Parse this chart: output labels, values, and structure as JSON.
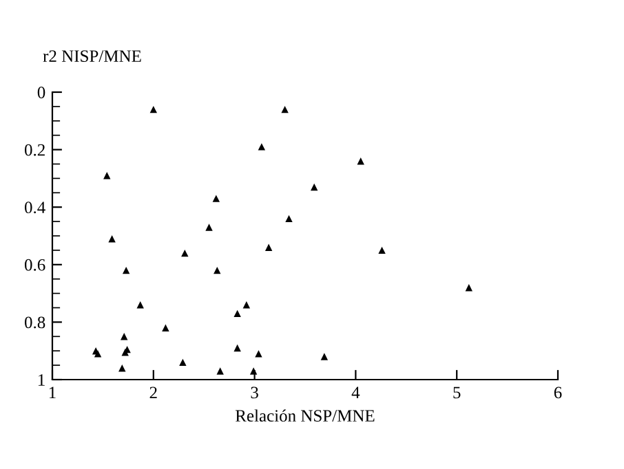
{
  "chart_data": {
    "type": "scatter",
    "xlabel": "Relación NSP/MNE",
    "ylabel": "r2 NISP/MNE",
    "x": [
      2.0,
      1.54,
      2.62,
      2.55,
      1.59,
      2.31,
      1.73,
      2.63,
      1.87,
      2.12,
      1.71,
      1.43,
      1.45,
      1.72,
      1.74,
      1.69,
      2.29,
      2.66,
      3.3,
      3.07,
      4.05,
      3.59,
      3.34,
      3.14,
      4.26,
      2.92,
      2.83,
      2.83,
      3.04,
      3.69,
      2.99,
      5.12
    ],
    "series": [
      {
        "color": "#000000",
        "values": [
          0.06,
          0.29,
          0.37,
          0.47,
          0.51,
          0.56,
          0.62,
          0.62,
          0.74,
          0.82,
          0.85,
          0.9,
          0.91,
          0.905,
          0.895,
          0.96,
          0.94,
          0.97,
          0.06,
          0.19,
          0.24,
          0.33,
          0.44,
          0.54,
          0.55,
          0.74,
          0.77,
          0.89,
          0.91,
          0.92,
          0.97,
          0.68
        ]
      }
    ],
    "marker": "triangle",
    "xlim": [
      1,
      6
    ],
    "xticks": [
      1,
      2,
      3,
      4,
      5,
      6
    ],
    "ylim": [
      1,
      0
    ],
    "yticks": [
      0,
      {
        "value": 0.05,
        "label": null
      },
      {
        "value": 0.1,
        "label": null
      },
      {
        "value": 0.15,
        "label": null
      },
      0.2,
      {
        "value": 0.25,
        "label": null
      },
      {
        "value": 0.3,
        "label": null
      },
      {
        "value": 0.35,
        "label": null
      },
      0.4,
      {
        "value": 0.45,
        "label": null
      },
      {
        "value": 0.5,
        "label": null
      },
      {
        "value": 0.55,
        "label": null
      },
      0.6,
      {
        "value": 0.65,
        "label": null
      },
      {
        "value": 0.7,
        "label": null
      },
      {
        "value": 0.75,
        "label": null
      },
      0.8,
      {
        "value": 0.85,
        "label": null
      },
      {
        "value": 0.9,
        "label": null
      },
      {
        "value": 0.95,
        "label": null
      },
      1
    ],
    "grid": false
  }
}
